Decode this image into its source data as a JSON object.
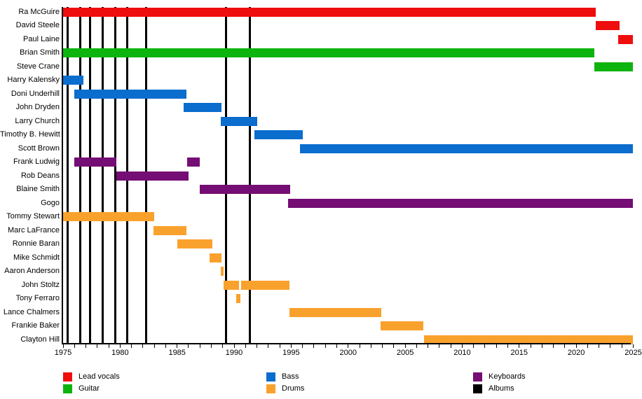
{
  "chart_data": {
    "type": "timeline",
    "title": "",
    "x_axis": {
      "min_year": 1975,
      "max_year": 2025,
      "minor_tick_every_years": 1,
      "label_every_years": 5,
      "tick_labels": [
        "1975",
        "1980",
        "1985",
        "1990",
        "1995",
        "2000",
        "2005",
        "2010",
        "2015",
        "2020",
        "2025"
      ]
    },
    "colors": {
      "lead_vocals": "#ee0e0e",
      "guitar": "#0eb40e",
      "bass": "#0b6dcd",
      "drums": "#f9a12d",
      "keyboards": "#740d74",
      "albums": "#000000"
    },
    "legend": [
      {
        "label": "Lead vocals",
        "color_key": "lead_vocals"
      },
      {
        "label": "Guitar",
        "color_key": "guitar"
      },
      {
        "label": "Bass",
        "color_key": "bass"
      },
      {
        "label": "Drums",
        "color_key": "drums"
      },
      {
        "label": "Keyboards",
        "color_key": "keyboards"
      },
      {
        "label": "Albums",
        "color_key": "albums"
      }
    ],
    "album_release_years": [
      1975.4,
      1976.5,
      1977.35,
      1978.45,
      1979.55,
      1980.65,
      1982.3,
      1989.3,
      1991.4
    ],
    "members": [
      {
        "name": "Ra McGuire",
        "role": "Lead vocals",
        "color_key": "lead_vocals",
        "stints": [
          [
            1975,
            2021.7
          ]
        ]
      },
      {
        "name": "David Steele",
        "role": "Lead vocals",
        "color_key": "lead_vocals",
        "stints": [
          [
            2021.7,
            2023.8
          ]
        ]
      },
      {
        "name": "Paul Laine",
        "role": "Lead vocals",
        "color_key": "lead_vocals",
        "stints": [
          [
            2023.7,
            2025
          ]
        ]
      },
      {
        "name": "Brian Smith",
        "role": "Guitar",
        "color_key": "guitar",
        "stints": [
          [
            1975,
            2021.6
          ]
        ]
      },
      {
        "name": "Steve Crane",
        "role": "Guitar",
        "color_key": "guitar",
        "stints": [
          [
            2021.6,
            2025
          ]
        ]
      },
      {
        "name": "Harry Kalensky",
        "role": "Bass",
        "color_key": "bass",
        "stints": [
          [
            1975,
            1976.8
          ]
        ]
      },
      {
        "name": "Doni Underhill",
        "role": "Bass",
        "color_key": "bass",
        "stints": [
          [
            1976,
            1985.8
          ]
        ]
      },
      {
        "name": "John Dryden",
        "role": "Bass",
        "color_key": "bass",
        "stints": [
          [
            1985.6,
            1988.9
          ]
        ]
      },
      {
        "name": "Larry Church",
        "role": "Bass",
        "color_key": "bass",
        "stints": [
          [
            1988.8,
            1992.0
          ]
        ]
      },
      {
        "name": "Timothy B. Hewitt",
        "role": "Bass",
        "color_key": "bass",
        "stints": [
          [
            1991.8,
            1996.0
          ]
        ]
      },
      {
        "name": "Scott Brown",
        "role": "Bass",
        "color_key": "bass",
        "stints": [
          [
            1995.8,
            2025
          ]
        ]
      },
      {
        "name": "Frank Ludwig",
        "role": "Keyboards",
        "color_key": "keyboards",
        "stints": [
          [
            1976.0,
            1979.7
          ],
          [
            1985.9,
            1987.0
          ]
        ]
      },
      {
        "name": "Rob Deans",
        "role": "Keyboards",
        "color_key": "keyboards",
        "stints": [
          [
            1979.7,
            1986.0
          ]
        ]
      },
      {
        "name": "Blaine Smith",
        "role": "Keyboards",
        "color_key": "keyboards",
        "stints": [
          [
            1987.0,
            1994.9
          ]
        ]
      },
      {
        "name": "Gogo",
        "role": "Keyboards",
        "color_key": "keyboards",
        "stints": [
          [
            1994.7,
            2025
          ]
        ]
      },
      {
        "name": "Tommy Stewart",
        "role": "Drums",
        "color_key": "drums",
        "stints": [
          [
            1975,
            1983.0
          ]
        ]
      },
      {
        "name": "Marc LaFrance",
        "role": "Drums",
        "color_key": "drums",
        "stints": [
          [
            1982.9,
            1985.8
          ]
        ]
      },
      {
        "name": "Ronnie Baran",
        "role": "Drums",
        "color_key": "drums",
        "stints": [
          [
            1985.0,
            1988.1
          ]
        ]
      },
      {
        "name": "Mike Schmidt",
        "role": "Drums",
        "color_key": "drums",
        "stints": [
          [
            1987.85,
            1988.9
          ]
        ]
      },
      {
        "name": "Aaron Anderson",
        "role": "Drums",
        "color_key": "drums",
        "stints": [
          [
            1988.8,
            1989.1
          ]
        ]
      },
      {
        "name": "John Stoltz",
        "role": "Drums",
        "color_key": "drums",
        "stints": [
          [
            1989.1,
            1990.4
          ],
          [
            1990.6,
            1994.85
          ]
        ]
      },
      {
        "name": "Tony Ferraro",
        "role": "Drums",
        "color_key": "drums",
        "stints": [
          [
            1990.2,
            1990.55
          ]
        ]
      },
      {
        "name": "Lance Chalmers",
        "role": "Drums",
        "color_key": "drums",
        "stints": [
          [
            1994.85,
            2002.9
          ]
        ]
      },
      {
        "name": "Frankie Baker",
        "role": "Drums",
        "color_key": "drums",
        "stints": [
          [
            2002.85,
            2006.6
          ]
        ]
      },
      {
        "name": "Clayton Hill",
        "role": "Drums",
        "color_key": "drums",
        "stints": [
          [
            2006.65,
            2025
          ]
        ]
      }
    ]
  }
}
